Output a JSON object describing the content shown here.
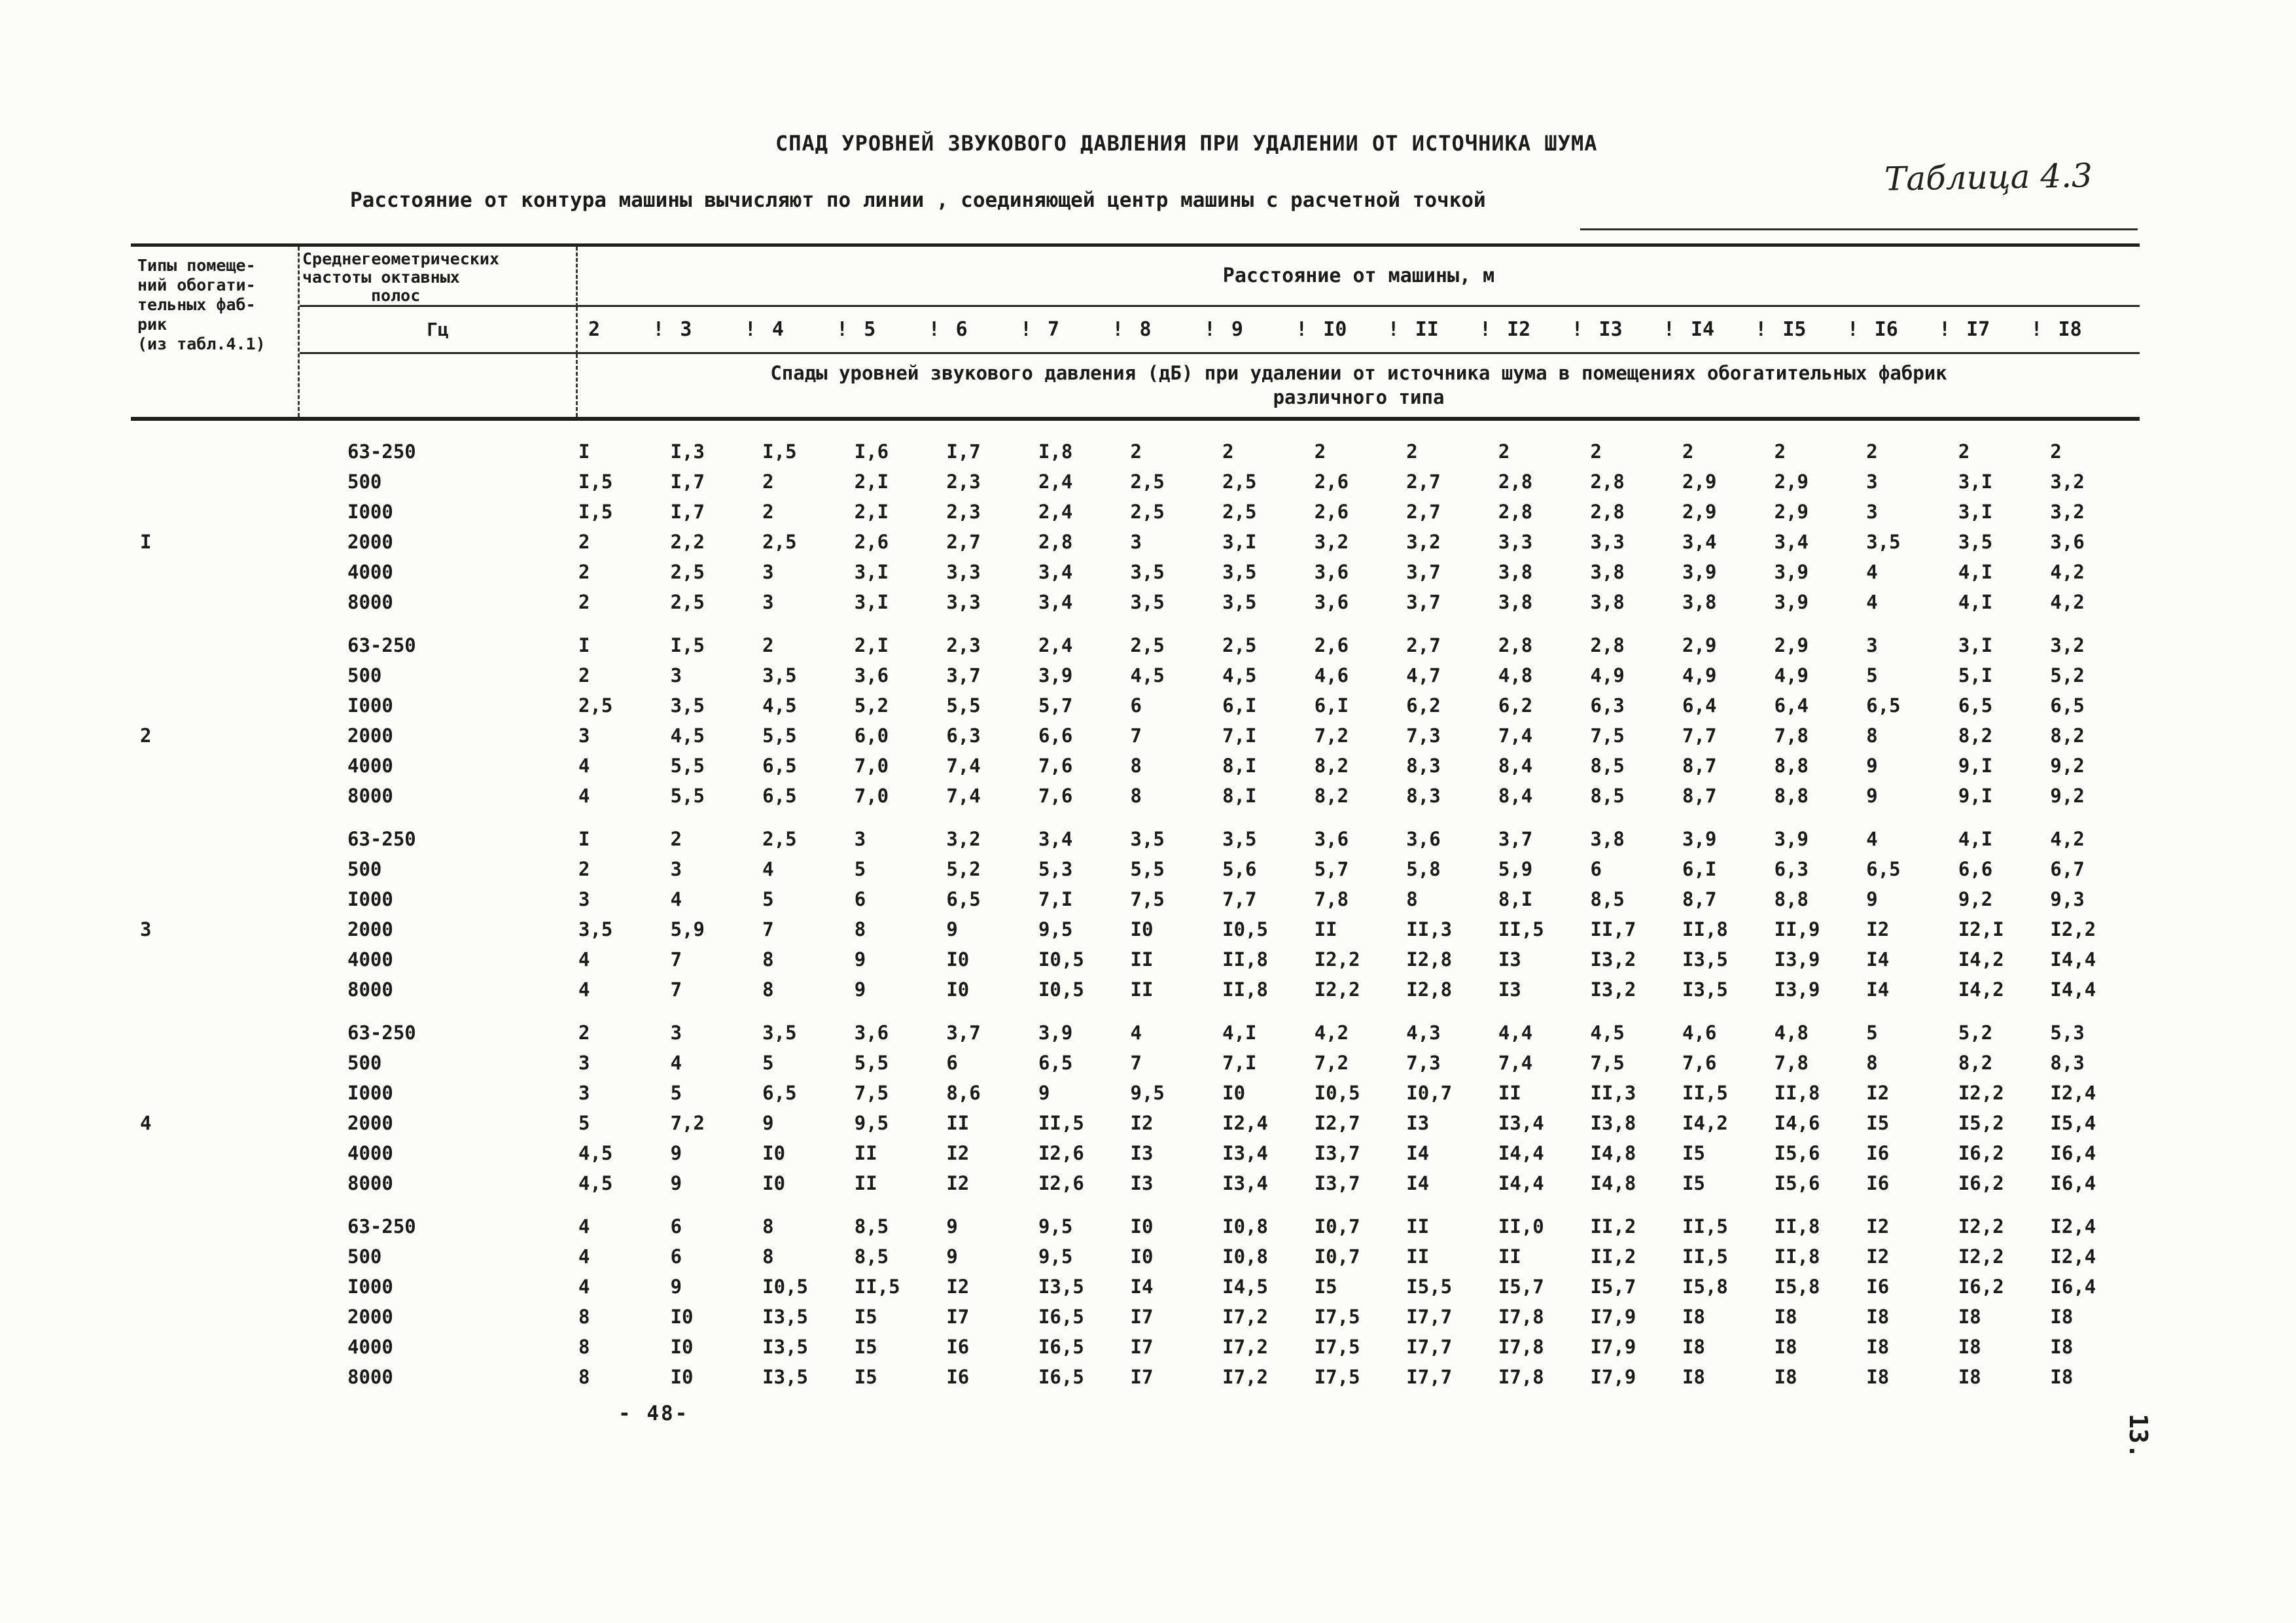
{
  "colors": {
    "paper": "#fcfcf9",
    "ink": "#1b1b1b"
  },
  "page": {
    "title": "СПАД УРОВНЕЙ ЗВУКОВОГО ДАВЛЕНИЯ ПРИ УДАЛЕНИИ ОТ ИСТОЧНИКА ШУМА",
    "subtitle": "Расстояние от контура машины вычисляют по линии , соединяющей центр машины с расчетной точкой",
    "table_label": "Таблица 4.3",
    "page_number_bottom": "- 48-",
    "page_number_side": "13."
  },
  "table": {
    "col1_header_lines": [
      "Типы помеще-",
      "ний обогати-",
      "тельных фаб-",
      "рик",
      "(из табл.4.1)"
    ],
    "col2_header_lines": [
      "Среднегеометрических",
      "частоты октавных",
      "полос"
    ],
    "col2_unit": "Гц",
    "distance_header": "Расстояние от машины, м",
    "distances": [
      "2",
      "3",
      "4",
      "5",
      "6",
      "7",
      "8",
      "9",
      "I0",
      "II",
      "I2",
      "I3",
      "I4",
      "I5",
      "I6",
      "I7",
      "I8"
    ],
    "span_note_lines": [
      "Спады уровней звукового давления (дБ) при удалении от источника шума в помещениях обогатительных фабрик",
      "различного типа"
    ],
    "groups": [
      {
        "type": "I",
        "rows": [
          {
            "freq": "63-250",
            "values": [
              "I",
              "I,3",
              "I,5",
              "I,6",
              "I,7",
              "I,8",
              "2",
              "2",
              "2",
              "2",
              "2",
              "2",
              "2",
              "2",
              "2",
              "2",
              "2"
            ]
          },
          {
            "freq": "500",
            "values": [
              "I,5",
              "I,7",
              "2",
              "2,I",
              "2,3",
              "2,4",
              "2,5",
              "2,5",
              "2,6",
              "2,7",
              "2,8",
              "2,8",
              "2,9",
              "2,9",
              "3",
              "3,I",
              "3,2"
            ]
          },
          {
            "freq": "I000",
            "values": [
              "I,5",
              "I,7",
              "2",
              "2,I",
              "2,3",
              "2,4",
              "2,5",
              "2,5",
              "2,6",
              "2,7",
              "2,8",
              "2,8",
              "2,9",
              "2,9",
              "3",
              "3,I",
              "3,2"
            ]
          },
          {
            "freq": "2000",
            "values": [
              "2",
              "2,2",
              "2,5",
              "2,6",
              "2,7",
              "2,8",
              "3",
              "3,I",
              "3,2",
              "3,2",
              "3,3",
              "3,3",
              "3,4",
              "3,4",
              "3,5",
              "3,5",
              "3,6"
            ]
          },
          {
            "freq": "4000",
            "values": [
              "2",
              "2,5",
              "3",
              "3,I",
              "3,3",
              "3,4",
              "3,5",
              "3,5",
              "3,6",
              "3,7",
              "3,8",
              "3,8",
              "3,9",
              "3,9",
              "4",
              "4,I",
              "4,2"
            ]
          },
          {
            "freq": "8000",
            "values": [
              "2",
              "2,5",
              "3",
              "3,I",
              "3,3",
              "3,4",
              "3,5",
              "3,5",
              "3,6",
              "3,7",
              "3,8",
              "3,8",
              "3,8",
              "3,9",
              "4",
              "4,I",
              "4,2"
            ]
          }
        ]
      },
      {
        "type": "2",
        "rows": [
          {
            "freq": "63-250",
            "values": [
              "I",
              "I,5",
              "2",
              "2,I",
              "2,3",
              "2,4",
              "2,5",
              "2,5",
              "2,6",
              "2,7",
              "2,8",
              "2,8",
              "2,9",
              "2,9",
              "3",
              "3,I",
              "3,2"
            ]
          },
          {
            "freq": "500",
            "values": [
              "2",
              "3",
              "3,5",
              "3,6",
              "3,7",
              "3,9",
              "4,5",
              "4,5",
              "4,6",
              "4,7",
              "4,8",
              "4,9",
              "4,9",
              "4,9",
              "5",
              "5,I",
              "5,2"
            ]
          },
          {
            "freq": "I000",
            "values": [
              "2,5",
              "3,5",
              "4,5",
              "5,2",
              "5,5",
              "5,7",
              "6",
              "6,I",
              "6,I",
              "6,2",
              "6,2",
              "6,3",
              "6,4",
              "6,4",
              "6,5",
              "6,5",
              "6,5"
            ]
          },
          {
            "freq": "2000",
            "values": [
              "3",
              "4,5",
              "5,5",
              "6,0",
              "6,3",
              "6,6",
              "7",
              "7,I",
              "7,2",
              "7,3",
              "7,4",
              "7,5",
              "7,7",
              "7,8",
              "8",
              "8,2",
              "8,2"
            ]
          },
          {
            "freq": "4000",
            "values": [
              "4",
              "5,5",
              "6,5",
              "7,0",
              "7,4",
              "7,6",
              "8",
              "8,I",
              "8,2",
              "8,3",
              "8,4",
              "8,5",
              "8,7",
              "8,8",
              "9",
              "9,I",
              "9,2"
            ]
          },
          {
            "freq": "8000",
            "values": [
              "4",
              "5,5",
              "6,5",
              "7,0",
              "7,4",
              "7,6",
              "8",
              "8,I",
              "8,2",
              "8,3",
              "8,4",
              "8,5",
              "8,7",
              "8,8",
              "9",
              "9,I",
              "9,2"
            ]
          }
        ]
      },
      {
        "type": "3",
        "rows": [
          {
            "freq": "63-250",
            "values": [
              "I",
              "2",
              "2,5",
              "3",
              "3,2",
              "3,4",
              "3,5",
              "3,5",
              "3,6",
              "3,6",
              "3,7",
              "3,8",
              "3,9",
              "3,9",
              "4",
              "4,I",
              "4,2"
            ]
          },
          {
            "freq": "500",
            "values": [
              "2",
              "3",
              "4",
              "5",
              "5,2",
              "5,3",
              "5,5",
              "5,6",
              "5,7",
              "5,8",
              "5,9",
              "6",
              "6,I",
              "6,3",
              "6,5",
              "6,6",
              "6,7"
            ]
          },
          {
            "freq": "I000",
            "values": [
              "3",
              "4",
              "5",
              "6",
              "6,5",
              "7,I",
              "7,5",
              "7,7",
              "7,8",
              "8",
              "8,I",
              "8,5",
              "8,7",
              "8,8",
              "9",
              "9,2",
              "9,3"
            ]
          },
          {
            "freq": "2000",
            "values": [
              "3,5",
              "5,9",
              "7",
              "8",
              "9",
              "9,5",
              "I0",
              "I0,5",
              "II",
              "II,3",
              "II,5",
              "II,7",
              "II,8",
              "II,9",
              "I2",
              "I2,I",
              "I2,2"
            ]
          },
          {
            "freq": "4000",
            "values": [
              "4",
              "7",
              "8",
              "9",
              "I0",
              "I0,5",
              "II",
              "II,8",
              "I2,2",
              "I2,8",
              "I3",
              "I3,2",
              "I3,5",
              "I3,9",
              "I4",
              "I4,2",
              "I4,4"
            ]
          },
          {
            "freq": "8000",
            "values": [
              "4",
              "7",
              "8",
              "9",
              "I0",
              "I0,5",
              "II",
              "II,8",
              "I2,2",
              "I2,8",
              "I3",
              "I3,2",
              "I3,5",
              "I3,9",
              "I4",
              "I4,2",
              "I4,4"
            ]
          }
        ]
      },
      {
        "type": "4",
        "rows": [
          {
            "freq": "63-250",
            "values": [
              "2",
              "3",
              "3,5",
              "3,6",
              "3,7",
              "3,9",
              "4",
              "4,I",
              "4,2",
              "4,3",
              "4,4",
              "4,5",
              "4,6",
              "4,8",
              "5",
              "5,2",
              "5,3"
            ]
          },
          {
            "freq": "500",
            "values": [
              "3",
              "4",
              "5",
              "5,5",
              "6",
              "6,5",
              "7",
              "7,I",
              "7,2",
              "7,3",
              "7,4",
              "7,5",
              "7,6",
              "7,8",
              "8",
              "8,2",
              "8,3"
            ]
          },
          {
            "freq": "I000",
            "values": [
              "3",
              "5",
              "6,5",
              "7,5",
              "8,6",
              "9",
              "9,5",
              "I0",
              "I0,5",
              "I0,7",
              "II",
              "II,3",
              "II,5",
              "II,8",
              "I2",
              "I2,2",
              "I2,4"
            ]
          },
          {
            "freq": "2000",
            "values": [
              "5",
              "7,2",
              "9",
              "9,5",
              "II",
              "II,5",
              "I2",
              "I2,4",
              "I2,7",
              "I3",
              "I3,4",
              "I3,8",
              "I4,2",
              "I4,6",
              "I5",
              "I5,2",
              "I5,4"
            ]
          },
          {
            "freq": "4000",
            "values": [
              "4,5",
              "9",
              "I0",
              "II",
              "I2",
              "I2,6",
              "I3",
              "I3,4",
              "I3,7",
              "I4",
              "I4,4",
              "I4,8",
              "I5",
              "I5,6",
              "I6",
              "I6,2",
              "I6,4"
            ]
          },
          {
            "freq": "8000",
            "values": [
              "4,5",
              "9",
              "I0",
              "II",
              "I2",
              "I2,6",
              "I3",
              "I3,4",
              "I3,7",
              "I4",
              "I4,4",
              "I4,8",
              "I5",
              "I5,6",
              "I6",
              "I6,2",
              "I6,4"
            ]
          }
        ]
      },
      {
        "type": "",
        "rows": [
          {
            "freq": "63-250",
            "values": [
              "4",
              "6",
              "8",
              "8,5",
              "9",
              "9,5",
              "I0",
              "I0,8",
              "I0,7",
              "II",
              "II,0",
              "II,2",
              "II,5",
              "II,8",
              "I2",
              "I2,2",
              "I2,4"
            ]
          },
          {
            "freq": "500",
            "values": [
              "4",
              "6",
              "8",
              "8,5",
              "9",
              "9,5",
              "I0",
              "I0,8",
              "I0,7",
              "II",
              "II",
              "II,2",
              "II,5",
              "II,8",
              "I2",
              "I2,2",
              "I2,4"
            ]
          },
          {
            "freq": "I000",
            "values": [
              "4",
              "9",
              "I0,5",
              "II,5",
              "I2",
              "I3,5",
              "I4",
              "I4,5",
              "I5",
              "I5,5",
              "I5,7",
              "I5,7",
              "I5,8",
              "I5,8",
              "I6",
              "I6,2",
              "I6,4"
            ]
          },
          {
            "freq": "2000",
            "values": [
              "8",
              "I0",
              "I3,5",
              "I5",
              "I7",
              "I6,5",
              "I7",
              "I7,2",
              "I7,5",
              "I7,7",
              "I7,8",
              "I7,9",
              "I8",
              "I8",
              "I8",
              "I8",
              "I8"
            ]
          },
          {
            "freq": "4000",
            "values": [
              "8",
              "I0",
              "I3,5",
              "I5",
              "I6",
              "I6,5",
              "I7",
              "I7,2",
              "I7,5",
              "I7,7",
              "I7,8",
              "I7,9",
              "I8",
              "I8",
              "I8",
              "I8",
              "I8"
            ]
          },
          {
            "freq": "8000",
            "values": [
              "8",
              "I0",
              "I3,5",
              "I5",
              "I6",
              "I6,5",
              "I7",
              "I7,2",
              "I7,5",
              "I7,7",
              "I7,8",
              "I7,9",
              "I8",
              "I8",
              "I8",
              "I8",
              "I8"
            ]
          }
        ]
      }
    ]
  }
}
